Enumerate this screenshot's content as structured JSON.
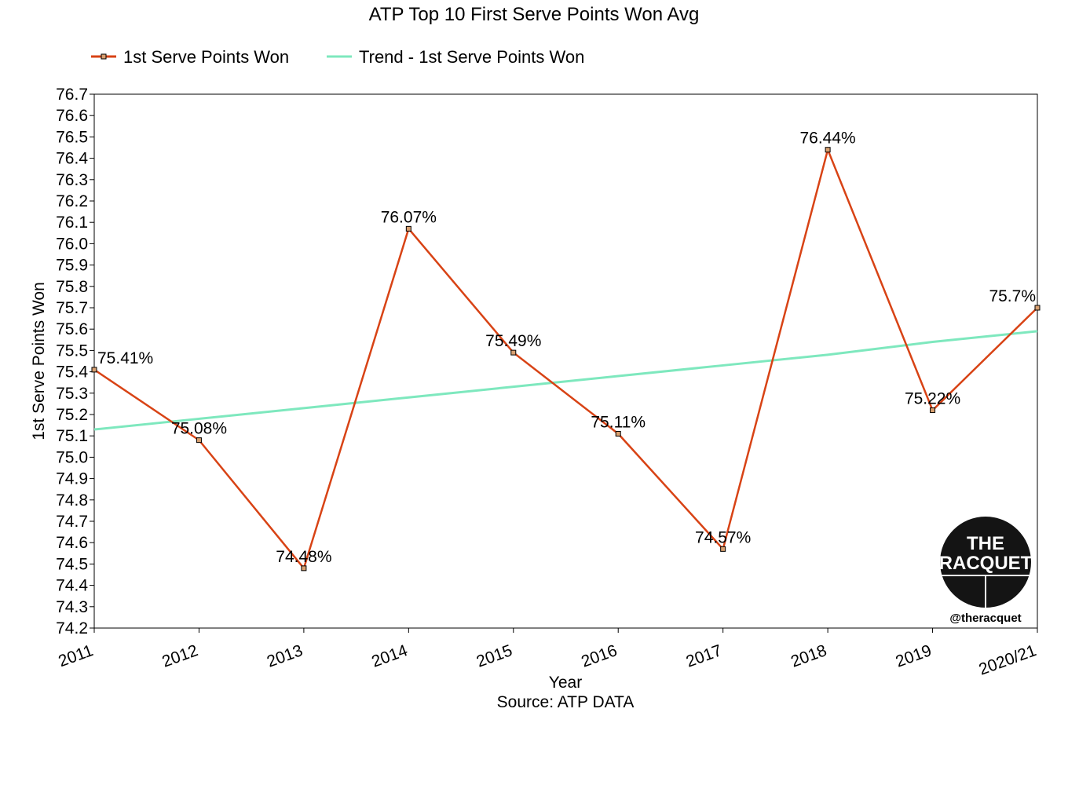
{
  "chart_data": {
    "type": "line",
    "title": "ATP Top 10 First Serve Points Won Avg",
    "xlabel": "Year",
    "ylabel": "1st Serve Points Won",
    "source_note": "Source: ATP DATA",
    "categories": [
      "2011",
      "2012",
      "2013",
      "2014",
      "2015",
      "2016",
      "2017",
      "2018",
      "2019",
      "2020/21"
    ],
    "series": [
      {
        "name": "1st Serve Points Won",
        "color": "#d84315",
        "marker": "square",
        "values": [
          75.41,
          75.08,
          74.48,
          76.07,
          75.49,
          75.11,
          74.57,
          76.44,
          75.22,
          75.7
        ],
        "data_labels": [
          "75.41%",
          "75.08%",
          "74.48%",
          "76.07%",
          "75.49%",
          "75.11%",
          "74.57%",
          "76.44%",
          "75.22%",
          "75.7%"
        ]
      },
      {
        "name": "Trend - 1st Serve Points Won",
        "color": "#7ee8be",
        "type": "trendline",
        "values": [
          75.13,
          75.18,
          75.23,
          75.28,
          75.33,
          75.38,
          75.43,
          75.48,
          75.54,
          75.59
        ]
      }
    ],
    "ylim": [
      74.2,
      76.7
    ],
    "yticks": [
      "74.2",
      "74.3",
      "74.4",
      "74.5",
      "74.6",
      "74.7",
      "74.8",
      "74.9",
      "75.0",
      "75.1",
      "75.2",
      "75.3",
      "75.4",
      "75.5",
      "75.6",
      "75.7",
      "75.8",
      "75.9",
      "76.0",
      "76.1",
      "76.2",
      "76.3",
      "76.4",
      "76.5",
      "76.6",
      "76.7"
    ],
    "grid": false,
    "legend": "top-left"
  },
  "logo": {
    "line1": "THE",
    "line2": "RACQUET",
    "handle": "@theracquet"
  }
}
